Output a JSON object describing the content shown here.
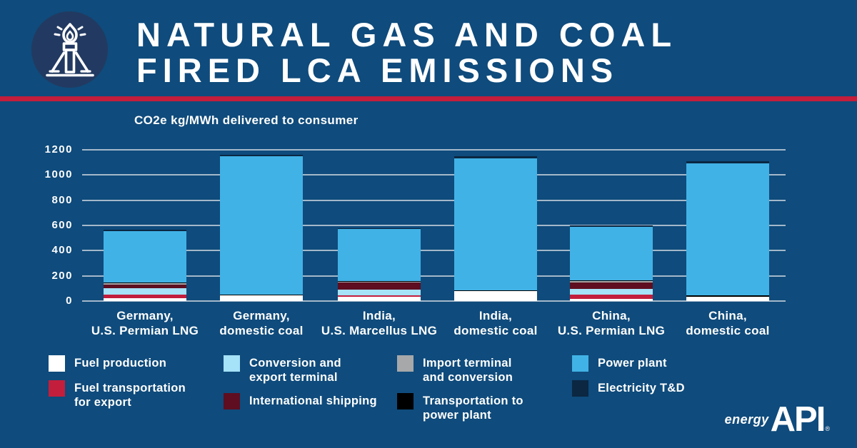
{
  "header": {
    "title_line1": "NATURAL GAS AND COAL",
    "title_line2": "FIRED LCA EMISSIONS",
    "icon": "gas-flare-icon"
  },
  "colors": {
    "background": "#0F4B7C",
    "icon_circle": "#223A61",
    "divider_red": "#C31E3C",
    "gridline": "#A4B8CA",
    "text": "#FFFFFF"
  },
  "chart_data": {
    "type": "bar",
    "stacked": true,
    "title": "CO2e kg/MWh delivered to consumer",
    "ylabel": "CO2e kg/MWh delivered to consumer",
    "xlabel": "",
    "ylim": [
      0,
      1200
    ],
    "yticks": [
      0,
      200,
      400,
      600,
      800,
      1000,
      1200
    ],
    "grid": true,
    "legend_position": "bottom",
    "categories": [
      "Germany,\nU.S. Permian LNG",
      "Germany,\ndomestic coal",
      "India,\nU.S. Marcellus LNG",
      "India,\ndomestic coal",
      "China,\nU.S. Permian LNG",
      "China,\ndomestic coal"
    ],
    "series": [
      {
        "name": "Fuel production",
        "color": "#FFFFFF",
        "values": [
          20,
          45,
          35,
          80,
          15,
          35
        ]
      },
      {
        "name": "Fuel transportation for export",
        "color": "#C31E3C",
        "values": [
          30,
          0,
          10,
          0,
          35,
          0
        ]
      },
      {
        "name": "Conversion and export terminal",
        "color": "#A6E2F8",
        "values": [
          50,
          0,
          45,
          0,
          45,
          0
        ]
      },
      {
        "name": "International shipping",
        "color": "#5E0E20",
        "values": [
          30,
          0,
          55,
          0,
          55,
          0
        ]
      },
      {
        "name": "Import terminal and conversion",
        "color": "#A7A8AA",
        "values": [
          10,
          0,
          10,
          0,
          10,
          0
        ]
      },
      {
        "name": "Transportation to power plant",
        "color": "#000000",
        "values": [
          5,
          5,
          5,
          5,
          5,
          10
        ]
      },
      {
        "name": "Power plant",
        "color": "#41B2E6",
        "values": [
          410,
          1100,
          410,
          1050,
          425,
          1050
        ]
      },
      {
        "name": "Electricity T&D",
        "color": "#0B2742",
        "values": [
          10,
          10,
          10,
          15,
          10,
          15
        ]
      }
    ],
    "totals": [
      565,
      1160,
      580,
      1150,
      600,
      1110
    ]
  },
  "legend": {
    "columns": [
      [
        {
          "label": "Fuel production",
          "color": "#FFFFFF"
        },
        {
          "label": "Fuel transportation\nfor export",
          "color": "#C31E3C"
        }
      ],
      [
        {
          "label": "Conversion and\nexport terminal",
          "color": "#A6E2F8"
        },
        {
          "label": "International shipping",
          "color": "#5E0E20"
        }
      ],
      [
        {
          "label": "Import terminal\nand conversion",
          "color": "#A7A8AA"
        },
        {
          "label": "Transportation to\npower plant",
          "color": "#000000"
        }
      ],
      [
        {
          "label": "Power plant",
          "color": "#41B2E6"
        },
        {
          "label": "Electricity T&D",
          "color": "#0B2742"
        }
      ]
    ]
  },
  "footer": {
    "brand_prefix": "energy",
    "brand_name": "API",
    "registered": "®"
  }
}
